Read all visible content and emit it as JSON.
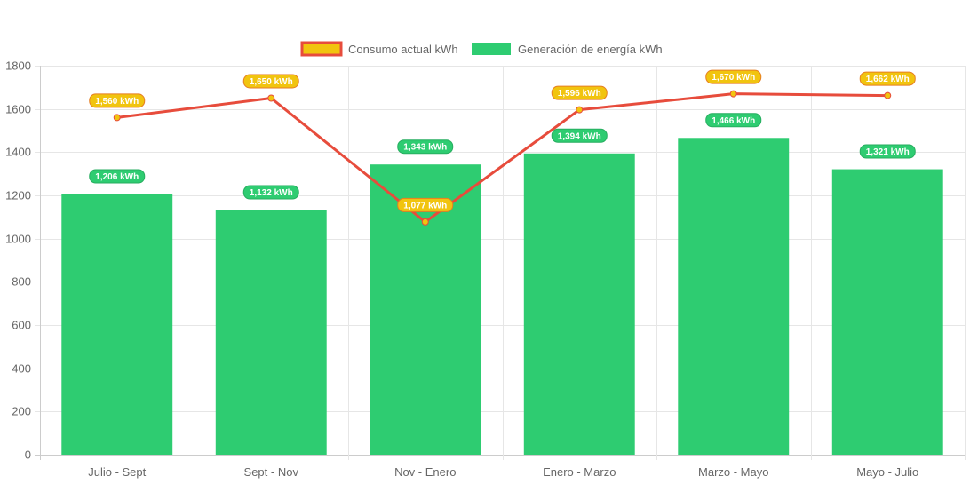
{
  "chart_data": {
    "type": "bar",
    "categories": [
      "Julio - Sept",
      "Sept - Nov",
      "Nov - Enero",
      "Enero - Marzo",
      "Marzo - Mayo",
      "Mayo - Julio"
    ],
    "series": [
      {
        "name": "Consumo actual kWh",
        "type": "line",
        "values": [
          1560,
          1650,
          1077,
          1596,
          1670,
          1662
        ],
        "labels": [
          "1,560 kWh",
          "1,650 kWh",
          "1,077 kWh",
          "1,596 kWh",
          "1,670 kWh",
          "1,662 kWh"
        ],
        "line_color": "#e74c3c",
        "fill_color": "#f1c40f"
      },
      {
        "name": "Generación de energía kWh",
        "type": "bar",
        "values": [
          1206,
          1132,
          1343,
          1394,
          1466,
          1321
        ],
        "labels": [
          "1,206 kWh",
          "1,132 kWh",
          "1,343 kWh",
          "1,394 kWh",
          "1,466 kWh",
          "1,321 kWh"
        ],
        "color": "#2ecc71"
      }
    ],
    "ylim": [
      0,
      1800
    ],
    "yticks": [
      "0",
      "200",
      "400",
      "600",
      "800",
      "1000",
      "1200",
      "1400",
      "1600",
      "1800"
    ],
    "grid": true,
    "legend_position": "top-center"
  }
}
